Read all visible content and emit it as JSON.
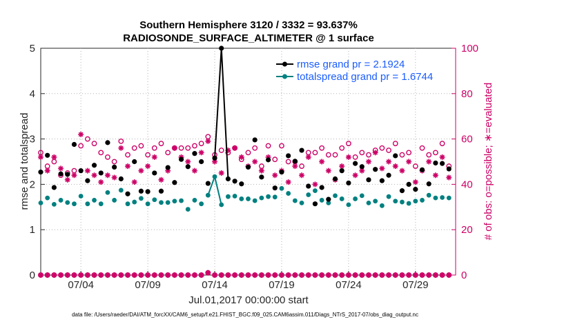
{
  "chart_data": {
    "type": "line",
    "title_line1": "Southern Hemisphere 3120 / 3332 = 93.637%",
    "title_line2": "RADIOSONDE_SURFACE_ALTIMETER @ 1 surface",
    "xlabel": "Jul.01,2017 00:00:00 start",
    "ylabel_left": "rmse and totalspread",
    "ylabel_right": "# of obs: o=possible; ∗=evaluated",
    "footer": "data file: /Users/raeder/DAI/ATM_forcXX/CAM6_setup/f.e21.FHIST_BGC.f09_025.CAM6assim.011/Diags_NTrS_2017-07/obs_diag_output.nc",
    "xlim": [
      1.0,
      32.0
    ],
    "ylim_left": [
      0,
      5
    ],
    "ylim_right": [
      0,
      100
    ],
    "x_ticks": [
      4,
      9,
      14,
      19,
      24,
      29
    ],
    "x_tick_labels": [
      "07/04",
      "07/09",
      "07/14",
      "07/19",
      "07/24",
      "07/29"
    ],
    "y_left_ticks": [
      0,
      1,
      2,
      3,
      4,
      5
    ],
    "y_left_tick_labels": [
      "0",
      "1",
      "2",
      "3",
      "4",
      "5"
    ],
    "y_right_ticks": [
      0,
      20,
      40,
      60,
      80,
      100
    ],
    "y_right_tick_labels": [
      "0",
      "20",
      "40",
      "60",
      "80",
      "100"
    ],
    "x": [
      1.0,
      1.5,
      2.0,
      2.5,
      3.0,
      3.5,
      4.0,
      4.5,
      5.0,
      5.5,
      6.0,
      6.5,
      7.0,
      7.5,
      8.0,
      8.5,
      9.0,
      9.5,
      10.0,
      10.5,
      11.0,
      11.5,
      12.0,
      12.5,
      13.0,
      13.5,
      14.0,
      14.5,
      15.0,
      15.5,
      16.0,
      16.5,
      17.0,
      17.5,
      18.0,
      18.5,
      19.0,
      19.5,
      20.0,
      20.5,
      21.0,
      21.5,
      22.0,
      22.5,
      23.0,
      23.5,
      24.0,
      24.5,
      25.0,
      25.5,
      26.0,
      26.5,
      27.0,
      27.5,
      28.0,
      28.5,
      29.0,
      29.5,
      30.0,
      30.5,
      31.0,
      31.5
    ],
    "series": [
      {
        "name": "rmse grand pr = 2.1924",
        "legend_label": "rmse grand pr = 2.1924",
        "color": "#000000",
        "values": [
          2.27,
          2.64,
          1.93,
          2.23,
          2.22,
          2.88,
          2.3,
          2.08,
          2.42,
          2.25,
          2.92,
          2.38,
          2.12,
          1.79,
          2.5,
          1.85,
          1.84,
          2.25,
          1.85,
          2.37,
          2.04,
          2.55,
          2.39,
          2.68,
          2.5,
          2.02,
          2.58,
          5.0,
          2.12,
          2.07,
          2.01,
          2.38,
          2.98,
          2.16,
          2.54,
          1.92,
          2.27,
          2.63,
          2.51,
          2.75,
          1.96,
          1.57,
          1.93,
          1.67,
          2.12,
          2.3,
          2.03,
          2.46,
          2.39,
          2.1,
          2.33,
          2.08,
          2.2,
          2.63,
          1.86,
          2.0,
          1.89,
          2.32,
          2.01,
          2.47,
          2.46,
          2.34
        ]
      },
      {
        "name": "totalspread grand pr = 1.6744",
        "legend_label": "totalspread grand pr = 1.6744",
        "color": "#008080",
        "values": [
          1.59,
          1.7,
          1.56,
          1.65,
          1.6,
          1.57,
          1.74,
          1.57,
          1.65,
          1.57,
          1.82,
          1.65,
          1.87,
          1.57,
          1.61,
          1.69,
          1.57,
          1.66,
          1.6,
          1.6,
          1.63,
          1.64,
          1.45,
          1.65,
          1.57,
          1.76,
          2.17,
          1.55,
          1.73,
          1.74,
          1.68,
          1.68,
          1.64,
          1.7,
          1.73,
          1.72,
          1.91,
          1.8,
          1.64,
          1.59,
          1.77,
          1.86,
          1.65,
          1.59,
          1.75,
          1.68,
          1.55,
          1.68,
          1.75,
          1.59,
          1.63,
          1.53,
          1.73,
          1.63,
          1.61,
          1.58,
          1.63,
          1.65,
          1.76,
          1.7,
          1.71,
          1.7
        ]
      },
      {
        "name": "# obs possible",
        "color": "#cc0066",
        "values": [
          54,
          48,
          50,
          44,
          45,
          46,
          57,
          60,
          58,
          54,
          52,
          50,
          59,
          53,
          56,
          57,
          53,
          56,
          58,
          54,
          56,
          56,
          56,
          57,
          58,
          61,
          53,
          55,
          54,
          56,
          51,
          54,
          56,
          48,
          57,
          51,
          57,
          50,
          50,
          48,
          54,
          54,
          56,
          53,
          53,
          56,
          58,
          52,
          54,
          53,
          55,
          56,
          55,
          58,
          53,
          54,
          48,
          56,
          53,
          54,
          58,
          48
        ]
      },
      {
        "name": "# obs evaluated",
        "color": "#cc0066",
        "values": [
          52,
          46,
          52,
          47,
          42,
          44,
          62,
          46,
          44,
          41,
          44,
          43,
          56,
          48,
          41,
          46,
          48,
          52,
          42,
          46,
          56,
          52,
          50,
          46,
          54,
          59,
          50,
          45,
          55,
          56,
          52,
          48,
          50,
          46,
          52,
          44,
          46,
          41,
          48,
          44,
          52,
          40,
          50,
          46,
          42,
          48,
          52,
          44,
          46,
          50,
          54,
          47,
          50,
          48,
          46,
          50,
          41,
          46,
          50,
          44,
          52,
          43
        ]
      },
      {
        "name": "# obs possible (low)",
        "color": "#cc0066",
        "values": [
          0,
          0,
          0,
          0,
          0,
          0,
          0,
          0,
          0,
          0,
          0,
          0,
          0,
          0,
          0,
          0,
          0,
          0,
          0,
          0,
          0,
          0,
          0,
          0,
          0,
          1,
          0,
          0,
          0,
          0,
          0,
          0,
          0,
          0,
          0,
          0,
          0,
          0,
          0,
          0,
          0,
          0,
          0,
          0,
          0,
          0,
          0,
          0,
          0,
          0,
          0,
          0,
          0,
          0,
          0,
          0,
          0,
          0,
          0,
          0,
          0,
          0
        ]
      }
    ]
  }
}
